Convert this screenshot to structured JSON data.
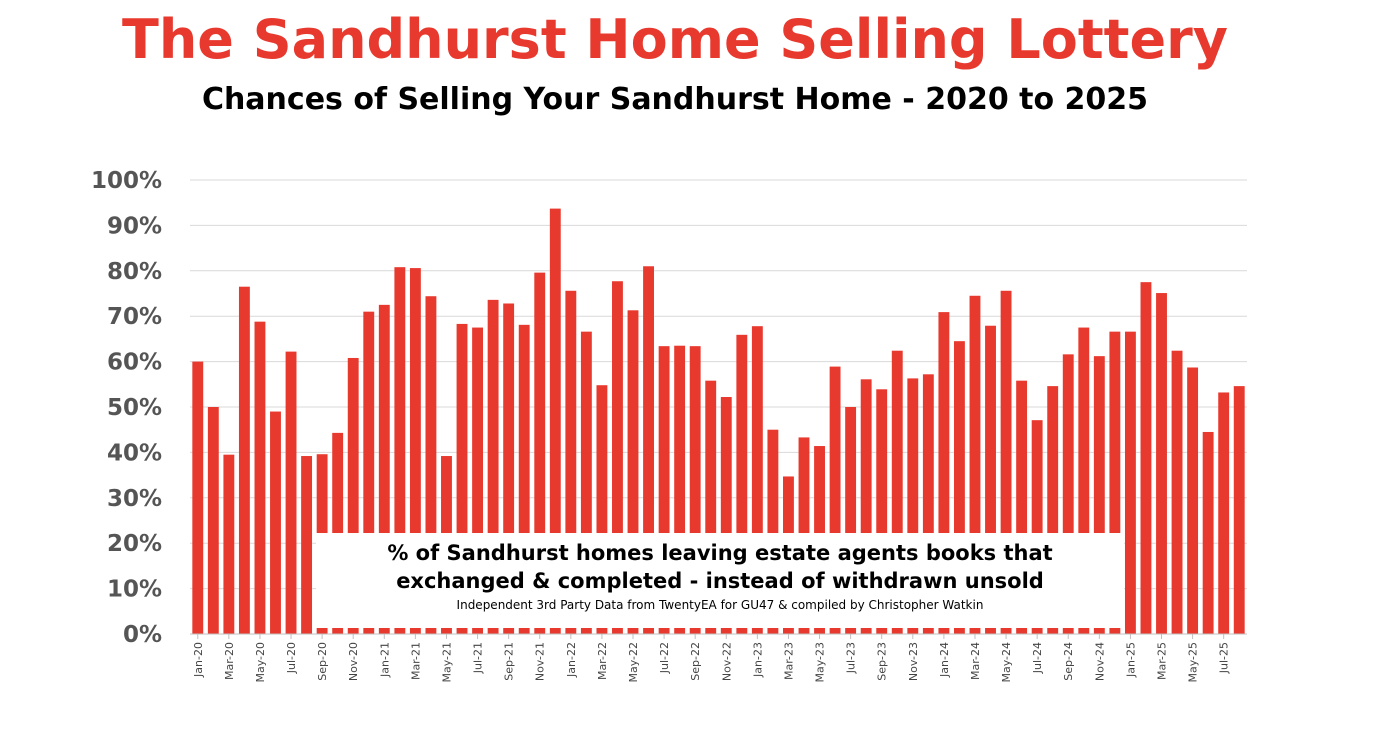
{
  "title": "The Sandhurst Home Selling Lottery",
  "subtitle": "Chances of Selling Your Sandhurst Home - 2020 to 2025",
  "annotation": {
    "line1": "% of Sandhurst homes leaving estate agents books that",
    "line2": "exchanged & completed - instead of withdrawn unsold",
    "source": "Independent 3rd Party Data from TwentyEA for GU47 & compiled by Christopher Watkin"
  },
  "colors": {
    "bar": "#e8392e",
    "title": "#e8392e",
    "grid": "#d9d9d9"
  },
  "chart_data": {
    "type": "bar",
    "title": "The Sandhurst Home Selling Lottery",
    "subtitle": "Chances of Selling Your Sandhurst Home - 2020 to 2025",
    "xlabel": "",
    "ylabel": "",
    "ylim": [
      0,
      100
    ],
    "yticks": [
      "0%",
      "10%",
      "20%",
      "30%",
      "40%",
      "50%",
      "60%",
      "70%",
      "80%",
      "90%",
      "100%"
    ],
    "grid": true,
    "legend": "none",
    "categories": [
      "Jan-20",
      "Feb-20",
      "Mar-20",
      "Apr-20",
      "May-20",
      "Jun-20",
      "Jul-20",
      "Aug-20",
      "Sep-20",
      "Oct-20",
      "Nov-20",
      "Dec-20",
      "Jan-21",
      "Feb-21",
      "Mar-21",
      "Apr-21",
      "May-21",
      "Jun-21",
      "Jul-21",
      "Aug-21",
      "Sep-21",
      "Oct-21",
      "Nov-21",
      "Dec-21",
      "Jan-22",
      "Feb-22",
      "Mar-22",
      "Apr-22",
      "May-22",
      "Jun-22",
      "Jul-22",
      "Aug-22",
      "Sep-22",
      "Oct-22",
      "Nov-22",
      "Dec-22",
      "Jan-23",
      "Feb-23",
      "Mar-23",
      "Apr-23",
      "May-23",
      "Jun-23",
      "Jul-23",
      "Aug-23",
      "Sep-23",
      "Oct-23",
      "Nov-23",
      "Dec-23",
      "Jan-24",
      "Feb-24",
      "Mar-24",
      "Apr-24",
      "May-24",
      "Jun-24",
      "Jul-24",
      "Aug-24",
      "Sep-24",
      "Oct-24",
      "Nov-24",
      "Dec-24",
      "Jan-25",
      "Feb-25",
      "Mar-25",
      "Apr-25",
      "May-25",
      "Jun-25",
      "Jul-25",
      "Aug-25"
    ],
    "tick_labels": [
      "Jan-20",
      "Mar-20",
      "May-20",
      "Jul-20",
      "Sep-20",
      "Nov-20",
      "Jan-21",
      "Mar-21",
      "May-21",
      "Jul-21",
      "Sep-21",
      "Nov-21",
      "Jan-22",
      "Mar-22",
      "May-22",
      "Jul-22",
      "Sep-22",
      "Nov-22",
      "Jan-23",
      "Mar-23",
      "May-23",
      "Jul-23",
      "Sep-23",
      "Nov-23",
      "Jan-24",
      "Mar-24",
      "May-24",
      "Jul-24",
      "Sep-24",
      "Nov-24",
      "Jan-25",
      "Mar-25",
      "May-25",
      "Jul-25"
    ],
    "values": [
      60,
      50,
      39.5,
      76.5,
      68.8,
      49,
      62.2,
      39.2,
      39.6,
      44.3,
      60.8,
      71,
      72.5,
      80.8,
      80.6,
      74.4,
      39.2,
      68.3,
      67.5,
      73.6,
      72.8,
      68.1,
      79.6,
      93.7,
      75.6,
      66.6,
      54.8,
      77.7,
      71.3,
      81,
      63.4,
      63.5,
      63.4,
      55.8,
      52.2,
      65.9,
      67.8,
      45,
      34.7,
      43.3,
      41.4,
      58.9,
      50,
      56.1,
      53.9,
      62.4,
      56.3,
      57.2,
      70.9,
      64.5,
      74.5,
      67.9,
      75.6,
      55.8,
      47.1,
      54.6,
      61.6,
      67.5,
      61.2,
      66.6,
      66.6,
      77.5,
      75.1,
      62.4,
      58.7,
      44.5,
      53.2,
      54.6
    ]
  }
}
